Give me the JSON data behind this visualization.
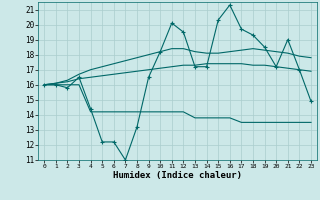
{
  "xlabel": "Humidex (Indice chaleur)",
  "background_color": "#cce8e8",
  "grid_color": "#aacece",
  "line_color": "#006868",
  "xlim": [
    -0.5,
    23.5
  ],
  "ylim": [
    11,
    21.5
  ],
  "yticks": [
    11,
    12,
    13,
    14,
    15,
    16,
    17,
    18,
    19,
    20,
    21
  ],
  "xticks": [
    0,
    1,
    2,
    3,
    4,
    5,
    6,
    7,
    8,
    9,
    10,
    11,
    12,
    13,
    14,
    15,
    16,
    17,
    18,
    19,
    20,
    21,
    22,
    23
  ],
  "series": [
    {
      "x": [
        0,
        1,
        2,
        3,
        4,
        5,
        6,
        7,
        8,
        9,
        10,
        11,
        12,
        13,
        14,
        15,
        16,
        17,
        18,
        19,
        20,
        21,
        22,
        23
      ],
      "y": [
        16,
        16,
        15.8,
        16.5,
        14.4,
        12.2,
        12.2,
        11.0,
        13.2,
        16.5,
        18.2,
        20.1,
        19.5,
        17.2,
        17.2,
        20.3,
        21.3,
        19.7,
        19.3,
        18.5,
        17.2,
        19.0,
        17.0,
        14.9
      ],
      "marker": "+"
    },
    {
      "x": [
        0,
        1,
        2,
        3,
        4,
        5,
        6,
        7,
        8,
        9,
        10,
        11,
        12,
        13,
        14,
        15,
        16,
        17,
        18,
        19,
        20,
        21,
        22,
        23
      ],
      "y": [
        16.0,
        16.0,
        16.0,
        16.0,
        14.2,
        14.2,
        14.2,
        14.2,
        14.2,
        14.2,
        14.2,
        14.2,
        14.2,
        13.8,
        13.8,
        13.8,
        13.8,
        13.5,
        13.5,
        13.5,
        13.5,
        13.5,
        13.5,
        13.5
      ],
      "marker": null
    },
    {
      "x": [
        0,
        1,
        2,
        3,
        4,
        5,
        6,
        7,
        8,
        9,
        10,
        11,
        12,
        13,
        14,
        15,
        16,
        17,
        18,
        19,
        20,
        21,
        22,
        23
      ],
      "y": [
        16.0,
        16.1,
        16.2,
        16.4,
        16.5,
        16.6,
        16.7,
        16.8,
        16.9,
        17.0,
        17.1,
        17.2,
        17.3,
        17.3,
        17.4,
        17.4,
        17.4,
        17.4,
        17.3,
        17.3,
        17.2,
        17.1,
        17.0,
        16.9
      ],
      "marker": null
    },
    {
      "x": [
        0,
        1,
        2,
        3,
        4,
        5,
        6,
        7,
        8,
        9,
        10,
        11,
        12,
        13,
        14,
        15,
        16,
        17,
        18,
        19,
        20,
        21,
        22,
        23
      ],
      "y": [
        16.0,
        16.1,
        16.3,
        16.7,
        17.0,
        17.2,
        17.4,
        17.6,
        17.8,
        18.0,
        18.2,
        18.4,
        18.4,
        18.2,
        18.1,
        18.1,
        18.2,
        18.3,
        18.4,
        18.3,
        18.2,
        18.1,
        17.9,
        17.8
      ],
      "marker": null
    }
  ]
}
